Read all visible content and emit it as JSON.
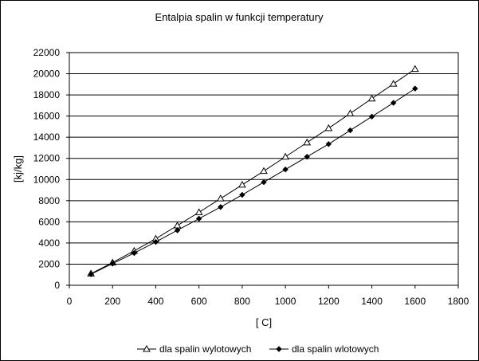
{
  "chart_data": {
    "type": "line",
    "title": "Entalpia spalin w funkcji temperatury",
    "xlabel": "[ C]",
    "ylabel": "[kj/kg]",
    "xlim": [
      0,
      1800
    ],
    "ylim": [
      0,
      22000
    ],
    "xticks": [
      0,
      200,
      400,
      600,
      800,
      1000,
      1200,
      1400,
      1600,
      1800
    ],
    "yticks": [
      0,
      2000,
      4000,
      6000,
      8000,
      10000,
      12000,
      14000,
      16000,
      18000,
      20000,
      22000
    ],
    "grid": "horizontal",
    "legend_position": "bottom",
    "x": [
      100,
      200,
      300,
      400,
      500,
      600,
      700,
      800,
      900,
      1000,
      1100,
      1200,
      1300,
      1400,
      1500,
      1600
    ],
    "series": [
      {
        "name": "dla spalin wylotowych",
        "marker": "triangle",
        "values": [
          1100,
          2150,
          3250,
          4400,
          5650,
          6900,
          8200,
          9500,
          10800,
          12150,
          13500,
          14850,
          16250,
          17650,
          19050,
          20450
        ]
      },
      {
        "name": "dla spalin wlotowych",
        "marker": "diamond",
        "values": [
          1050,
          2050,
          3050,
          4100,
          5200,
          6300,
          7400,
          8550,
          9750,
          10950,
          12150,
          13350,
          14650,
          15950,
          17250,
          18600
        ]
      }
    ],
    "colors": {
      "line": "#000000",
      "grid": "#000000",
      "background": "#ffffff"
    }
  }
}
